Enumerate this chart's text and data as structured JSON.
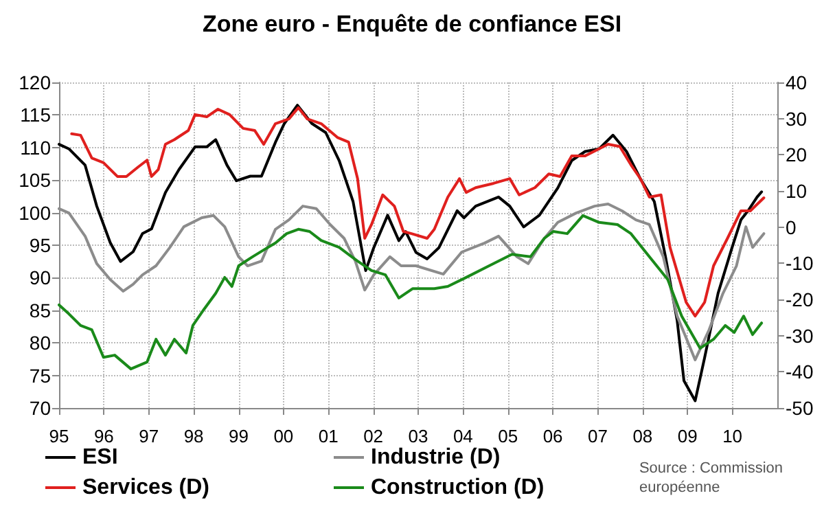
{
  "chart_data": {
    "type": "line",
    "title": "Zone euro - Enquête de confiance ESI",
    "annotations": [
      "Source : Commission européenne"
    ],
    "xlim": [
      1995,
      2011
    ],
    "xticks": [
      {
        "value": 1995,
        "label": "95"
      },
      {
        "value": 1996,
        "label": "96"
      },
      {
        "value": 1997,
        "label": "97"
      },
      {
        "value": 1998,
        "label": "98"
      },
      {
        "value": 1999,
        "label": "99"
      },
      {
        "value": 2000,
        "label": "00"
      },
      {
        "value": 2001,
        "label": "01"
      },
      {
        "value": 2002,
        "label": "02"
      },
      {
        "value": 2003,
        "label": "03"
      },
      {
        "value": 2004,
        "label": "04"
      },
      {
        "value": 2005,
        "label": "05"
      },
      {
        "value": 2006,
        "label": "06"
      },
      {
        "value": 2007,
        "label": "07"
      },
      {
        "value": 2008,
        "label": "08"
      },
      {
        "value": 2009,
        "label": "09"
      },
      {
        "value": 2010,
        "label": "10"
      }
    ],
    "ylim": [
      70,
      120
    ],
    "yticks": [
      70,
      75,
      80,
      85,
      90,
      95,
      100,
      105,
      110,
      115,
      120
    ],
    "y2lim": [
      -50,
      40
    ],
    "y2ticks": [
      -50,
      -40,
      -30,
      -20,
      -10,
      0,
      10,
      20,
      30,
      40
    ],
    "grid": true,
    "legend": "bottom",
    "line_style": "solid",
    "marker": "none",
    "series": [
      {
        "name": "ESI",
        "color": "#000000",
        "x": [
          1995.0,
          1995.22,
          1995.58,
          1995.84,
          1996.14,
          1996.37,
          1996.65,
          1996.86,
          1997.06,
          1997.37,
          1997.67,
          1998.03,
          1998.29,
          1998.49,
          1998.74,
          1998.95,
          1999.26,
          1999.51,
          1999.82,
          2000.02,
          2000.31,
          2000.63,
          2000.94,
          2001.24,
          2001.55,
          2001.83,
          2002.01,
          2002.32,
          2002.57,
          2002.72,
          2002.95,
          2003.2,
          2003.46,
          2003.87,
          2004.02,
          2004.28,
          2004.79,
          2005.04,
          2005.35,
          2005.7,
          2006.11,
          2006.42,
          2006.72,
          2007.03,
          2007.34,
          2007.64,
          2007.95,
          2008.26,
          2008.51,
          2008.77,
          2008.92,
          2009.17,
          2009.38,
          2009.68,
          2009.99,
          2010.19,
          2010.35,
          2010.55,
          2010.65
        ],
        "values": [
          110.5,
          109.8,
          107.3,
          101,
          95.4,
          92.5,
          94,
          96.8,
          97.5,
          103.1,
          106.6,
          110.1,
          110.1,
          111.2,
          107.3,
          104.9,
          105.6,
          105.6,
          110.8,
          113.7,
          116.5,
          113.7,
          112.3,
          108,
          101.7,
          91.1,
          94.6,
          99.6,
          95.7,
          97.1,
          93.9,
          92.9,
          94.6,
          100.3,
          99.2,
          101,
          102.4,
          101,
          97.8,
          99.6,
          103.8,
          108,
          109.4,
          109.8,
          111.9,
          109.4,
          105.2,
          101.7,
          93.2,
          83.4,
          74.2,
          71.1,
          77.7,
          87.6,
          94.6,
          98.9,
          100.3,
          102.4,
          103.2
        ]
      },
      {
        "name": "Industrie (D)",
        "color": "#8c8c8c",
        "axis": "y2",
        "x": [
          1995.0,
          1995.22,
          1995.58,
          1995.84,
          1996.14,
          1996.43,
          1996.65,
          1996.86,
          1997.16,
          1997.47,
          1997.78,
          1998.18,
          1998.44,
          1998.69,
          1999.0,
          1999.2,
          1999.51,
          1999.82,
          2000.12,
          2000.43,
          2000.73,
          2001.04,
          2001.35,
          2001.6,
          2001.81,
          2002.01,
          2002.37,
          2002.62,
          2002.95,
          2003.56,
          2003.97,
          2004.48,
          2004.79,
          2005.2,
          2005.45,
          2005.81,
          2006.11,
          2006.52,
          2006.93,
          2007.23,
          2007.54,
          2007.85,
          2008.15,
          2008.46,
          2008.77,
          2009.17,
          2009.48,
          2009.79,
          2010.09,
          2010.3,
          2010.45,
          2010.7
        ],
        "values": [
          5.1,
          3.9,
          -2.5,
          -10.1,
          -14.5,
          -17.7,
          -15.8,
          -13.2,
          -10.7,
          -5.6,
          0.1,
          2.6,
          3.2,
          0.1,
          -8.2,
          -10.7,
          -9.4,
          -0.6,
          2,
          5.8,
          5.1,
          0.7,
          -3.1,
          -9.4,
          -17.4,
          -13.2,
          -8.2,
          -10.7,
          -10.7,
          -13,
          -6.9,
          -4.4,
          -2.5,
          -8.2,
          -10.1,
          -3.1,
          1.3,
          3.9,
          5.8,
          6.4,
          4.5,
          2,
          0.7,
          -8.2,
          -24.6,
          -36.7,
          -28.4,
          -18.3,
          -10.7,
          0.1,
          -5.6,
          -1.8
        ]
      },
      {
        "name": "Services (D)",
        "color": "#e0201e",
        "axis": "y2",
        "x": [
          1995.28,
          1995.48,
          1995.73,
          1995.99,
          1996.3,
          1996.5,
          1996.76,
          1996.96,
          1997.06,
          1997.21,
          1997.37,
          1997.57,
          1997.88,
          1998.03,
          1998.29,
          1998.54,
          1998.8,
          1999.1,
          1999.36,
          1999.56,
          1999.82,
          2000.12,
          2000.33,
          2000.53,
          2000.84,
          2001.2,
          2001.45,
          2001.65,
          2001.81,
          2001.96,
          2002.21,
          2002.47,
          2002.67,
          2002.85,
          2003.2,
          2003.36,
          2003.66,
          2003.92,
          2004.07,
          2004.28,
          2004.68,
          2005.04,
          2005.25,
          2005.6,
          2005.91,
          2006.16,
          2006.42,
          2006.72,
          2006.93,
          2007.23,
          2007.49,
          2007.74,
          2007.95,
          2008.15,
          2008.41,
          2008.61,
          2008.97,
          2009.17,
          2009.38,
          2009.58,
          2009.89,
          2010.19,
          2010.4,
          2010.7
        ],
        "values": [
          25.8,
          25.4,
          19.1,
          17.8,
          14,
          14,
          16.6,
          18.5,
          14,
          15.9,
          22.9,
          24.2,
          26.7,
          31.1,
          30.5,
          32.6,
          31.1,
          27.3,
          26.7,
          22.9,
          28.6,
          29.9,
          33,
          29.9,
          28.6,
          24.8,
          23.5,
          13.4,
          -3.1,
          0.7,
          8.9,
          5.8,
          -1.2,
          -1.8,
          -3.1,
          -0.6,
          8.3,
          13.4,
          9.6,
          10.9,
          12.1,
          13.4,
          8.9,
          10.9,
          14.7,
          14,
          19.7,
          19.7,
          21,
          22.9,
          22.3,
          17.2,
          13.4,
          8.3,
          8.9,
          -5.6,
          -20.8,
          -24.6,
          -20.8,
          -10.7,
          -3.1,
          4.5,
          4.5,
          8.1
        ]
      },
      {
        "name": "Construction (D)",
        "color": "#1a8a1a",
        "axis": "y2",
        "x": [
          1995.0,
          1995.22,
          1995.48,
          1995.73,
          1995.99,
          1996.24,
          1996.6,
          1996.96,
          1997.16,
          1997.37,
          1997.57,
          1997.83,
          1997.98,
          1998.23,
          1998.49,
          1998.69,
          1998.85,
          1999.0,
          1999.31,
          1999.56,
          1999.82,
          2000.07,
          2000.33,
          2000.58,
          2000.84,
          2001.24,
          2001.65,
          2001.96,
          2002.27,
          2002.57,
          2002.88,
          2003.36,
          2003.66,
          2004.07,
          2004.58,
          2005.09,
          2005.5,
          2005.81,
          2006.01,
          2006.32,
          2006.67,
          2007.03,
          2007.44,
          2007.74,
          2008.15,
          2008.56,
          2008.87,
          2009.28,
          2009.58,
          2009.84,
          2010.04,
          2010.25,
          2010.45,
          2010.65
        ],
        "values": [
          -21.5,
          -24,
          -27.2,
          -28.4,
          -36,
          -35.4,
          -39.2,
          -37.3,
          -31,
          -35.4,
          -31,
          -34.8,
          -27.2,
          -22.7,
          -18.3,
          -13.9,
          -16.4,
          -10.7,
          -8.2,
          -6.3,
          -4.4,
          -1.8,
          -0.6,
          -1.2,
          -3.7,
          -5.6,
          -9.4,
          -12,
          -13.2,
          -19.6,
          -17,
          -17,
          -16.4,
          -13.9,
          -10.7,
          -7.5,
          -8.2,
          -3.1,
          -1.2,
          -1.8,
          3.2,
          1.3,
          0.7,
          -1.8,
          -8.2,
          -14.5,
          -24.6,
          -33.5,
          -31,
          -27.2,
          -29.1,
          -24.6,
          -29.7,
          -26.5
        ]
      }
    ]
  }
}
